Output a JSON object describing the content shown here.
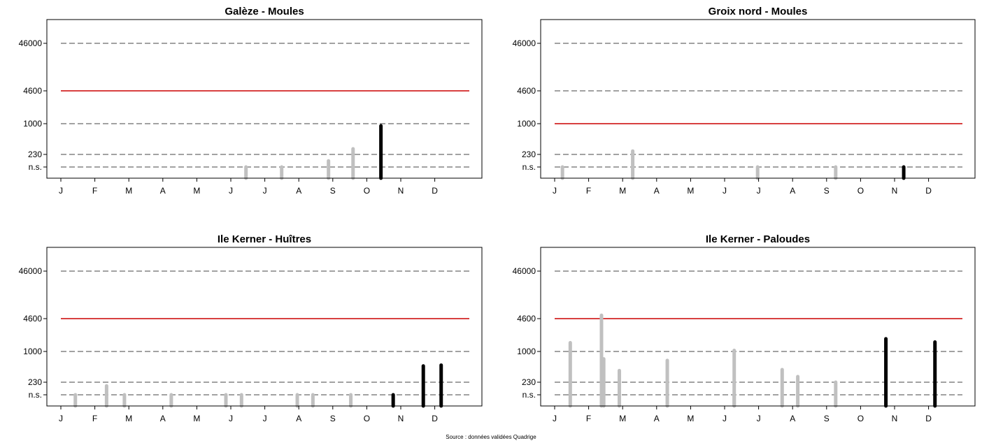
{
  "source_note": "Source : données validées Quadrige",
  "chart_data": [
    {
      "type": "bar",
      "title": "Galèze - Moules",
      "y_ticks": [
        "46000",
        "4600",
        "1000",
        "230",
        "n.s."
      ],
      "x_ticks": [
        "J",
        "F",
        "M",
        "A",
        "M",
        "J",
        "J",
        "A",
        "S",
        "O",
        "N",
        "D"
      ],
      "x_range_days": [
        0,
        365
      ],
      "y_scale": "log, values below detection shown as n.s.",
      "threshold_line": {
        "value": 4600,
        "color": "#cc0000"
      },
      "dashed_levels": [
        46000,
        1000,
        230,
        "n.s."
      ],
      "colors": {
        "previous": "#c0c0c0",
        "current": "#000000"
      },
      "series": [
        {
          "values": [
            {
              "day": 166,
              "value": "n.s."
            },
            {
              "day": 198,
              "value": "n.s."
            },
            {
              "day": 240,
              "value": 150
            },
            {
              "day": 262,
              "value": 300
            }
          ],
          "color": "previous"
        },
        {
          "values": [
            {
              "day": 287,
              "value": 900
            }
          ],
          "color": "current"
        }
      ]
    },
    {
      "type": "bar",
      "title": "Groix nord - Moules",
      "y_ticks": [
        "46000",
        "4600",
        "1000",
        "230",
        "n.s."
      ],
      "x_ticks": [
        "J",
        "F",
        "M",
        "A",
        "M",
        "J",
        "J",
        "A",
        "S",
        "O",
        "N",
        "D"
      ],
      "x_range_days": [
        0,
        365
      ],
      "y_scale": "log, values below detection shown as n.s.",
      "threshold_line": {
        "value": 1000,
        "color": "#cc0000"
      },
      "dashed_levels": [
        46000,
        4600,
        230,
        "n.s."
      ],
      "colors": {
        "previous": "#c0c0c0",
        "current": "#000000"
      },
      "series": [
        {
          "values": [
            {
              "day": 7,
              "value": "n.s."
            },
            {
              "day": 70,
              "value": 270
            },
            {
              "day": 182,
              "value": "n.s."
            },
            {
              "day": 252,
              "value": "n.s."
            }
          ],
          "color": "previous"
        },
        {
          "values": [
            {
              "day": 313,
              "value": "n.s."
            }
          ],
          "color": "current"
        }
      ]
    },
    {
      "type": "bar",
      "title": "Ile Kerner - Huîtres",
      "y_ticks": [
        "46000",
        "4600",
        "1000",
        "230",
        "n.s."
      ],
      "x_ticks": [
        "J",
        "F",
        "M",
        "A",
        "M",
        "J",
        "J",
        "A",
        "S",
        "O",
        "N",
        "D"
      ],
      "x_range_days": [
        0,
        365
      ],
      "y_scale": "log, values below detection shown as n.s.",
      "threshold_line": {
        "value": 4600,
        "color": "#cc0000"
      },
      "dashed_levels": [
        46000,
        1000,
        230,
        "n.s."
      ],
      "colors": {
        "previous": "#c0c0c0",
        "current": "#000000"
      },
      "series": [
        {
          "values": [
            {
              "day": 13,
              "value": "n.s."
            },
            {
              "day": 41,
              "value": 180
            },
            {
              "day": 57,
              "value": "n.s."
            },
            {
              "day": 99,
              "value": "n.s."
            },
            {
              "day": 148,
              "value": "n.s."
            },
            {
              "day": 162,
              "value": "n.s."
            },
            {
              "day": 212,
              "value": "n.s."
            },
            {
              "day": 226,
              "value": "n.s."
            },
            {
              "day": 260,
              "value": "n.s."
            }
          ],
          "color": "previous"
        },
        {
          "values": [
            {
              "day": 298,
              "value": "n.s."
            },
            {
              "day": 325,
              "value": 500
            },
            {
              "day": 341,
              "value": 520
            }
          ],
          "color": "current"
        }
      ]
    },
    {
      "type": "bar",
      "title": "Ile Kerner - Paloudes",
      "y_ticks": [
        "46000",
        "4600",
        "1000",
        "230",
        "n.s."
      ],
      "x_ticks": [
        "J",
        "F",
        "M",
        "A",
        "M",
        "J",
        "J",
        "A",
        "S",
        "O",
        "N",
        "D"
      ],
      "x_range_days": [
        0,
        365
      ],
      "y_scale": "log, values below detection shown as n.s.",
      "threshold_line": {
        "value": 4600,
        "color": "#cc0000"
      },
      "dashed_levels": [
        46000,
        1000,
        230,
        "n.s."
      ],
      "colors": {
        "previous": "#c0c0c0",
        "current": "#000000"
      },
      "series": [
        {
          "values": [
            {
              "day": 14,
              "value": 1500
            },
            {
              "day": 42,
              "value": 5400
            },
            {
              "day": 44,
              "value": 700
            },
            {
              "day": 58,
              "value": 400
            },
            {
              "day": 101,
              "value": 650
            },
            {
              "day": 161,
              "value": "n.s."
            },
            {
              "day": 161,
              "value": 1050
            },
            {
              "day": 204,
              "value": 420
            },
            {
              "day": 218,
              "value": 300
            },
            {
              "day": 252,
              "value": 230
            }
          ],
          "color": "previous"
        },
        {
          "values": [
            {
              "day": 297,
              "value": 1800
            },
            {
              "day": 341,
              "value": 1550
            }
          ],
          "color": "current"
        }
      ]
    }
  ]
}
